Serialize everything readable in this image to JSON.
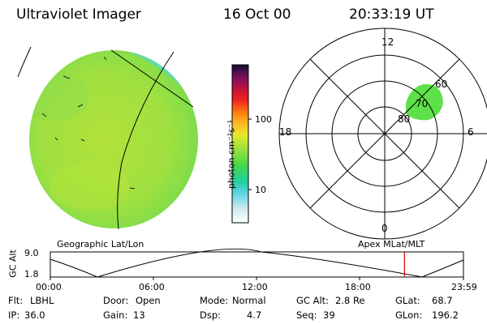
{
  "header": {
    "instrument": "Ultraviolet Imager",
    "date": "16 Oct 00",
    "time": "20:33:19 UT"
  },
  "colorbar": {
    "unit_label": "photon cm⁻²s⁻¹",
    "ticks": [
      "100",
      "10"
    ]
  },
  "polar_plot": {
    "mlt_labels": {
      "top": "12",
      "left": "18",
      "right": "6",
      "bottom": "0"
    },
    "lat_labels": [
      "60",
      "70",
      "80"
    ]
  },
  "panel_labels": {
    "left": "Geographic Lat/Lon",
    "right": "Apex MLat/MLT"
  },
  "altitude_plot": {
    "ylabel": "GC Alt",
    "yticks": [
      "9.0",
      "1.8"
    ],
    "xticks": [
      "00:00",
      "06:00",
      "12:00",
      "18:00",
      "23:59"
    ],
    "current_time_hours": 20.56
  },
  "info": {
    "row1": [
      {
        "key": "Flt:",
        "value": "LBHL"
      },
      {
        "key": "Door:",
        "value": "Open"
      },
      {
        "key": "Mode:",
        "value": "Normal"
      },
      {
        "key": "GC Alt:",
        "value": "2.8 Re"
      },
      {
        "key": "GLat:",
        "value": "68.7"
      }
    ],
    "row2": [
      {
        "key": "IP:",
        "value": "36.0"
      },
      {
        "key": "Gain:",
        "value": "13"
      },
      {
        "key": "Dsp:",
        "value": "4.7"
      },
      {
        "key": "Seq:",
        "value": "39"
      },
      {
        "key": "GLon:",
        "value": "196.2"
      }
    ]
  },
  "colors": {
    "earth_disk": "#9be23f",
    "oval": "#5ee04a",
    "marker": "#d00000"
  }
}
